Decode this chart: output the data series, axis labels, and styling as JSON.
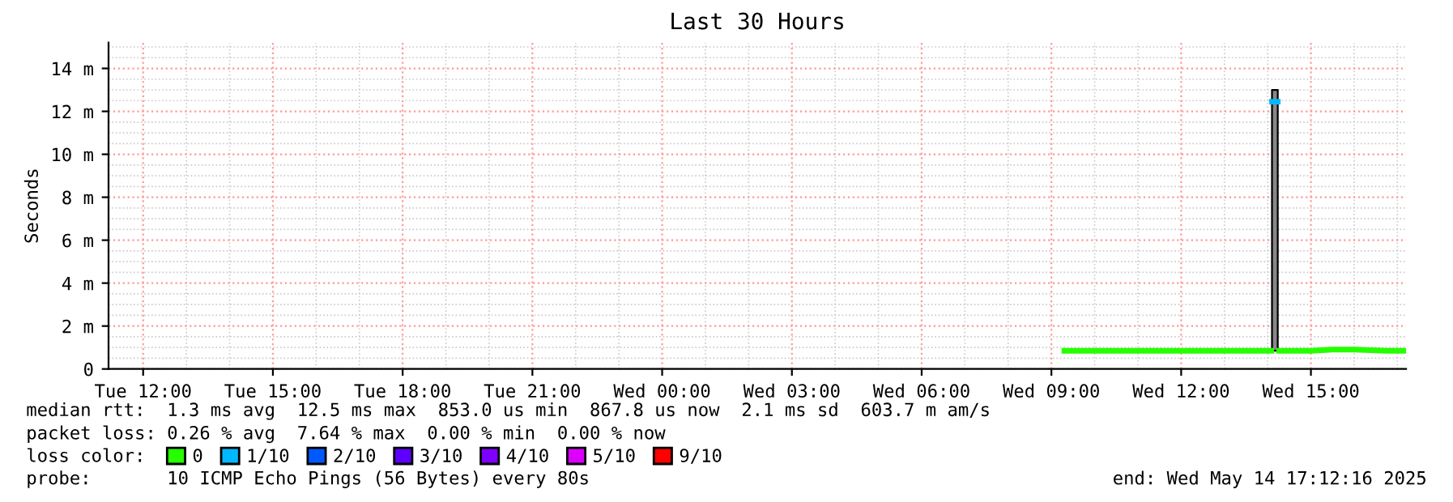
{
  "chart_data": {
    "type": "line",
    "title": "Last 30 Hours",
    "ylabel": "Seconds",
    "xlim": [
      "2025-05-13T11:12",
      "2025-05-14T17:12"
    ],
    "xticks": [
      {
        "value": "2025-05-13T12:00",
        "label": "Tue 12:00"
      },
      {
        "value": "2025-05-13T15:00",
        "label": "Tue 15:00"
      },
      {
        "value": "2025-05-13T18:00",
        "label": "Tue 18:00"
      },
      {
        "value": "2025-05-13T21:00",
        "label": "Tue 21:00"
      },
      {
        "value": "2025-05-14T00:00",
        "label": "Wed 00:00"
      },
      {
        "value": "2025-05-14T03:00",
        "label": "Wed 03:00"
      },
      {
        "value": "2025-05-14T06:00",
        "label": "Wed 06:00"
      },
      {
        "value": "2025-05-14T09:00",
        "label": "Wed 09:00"
      },
      {
        "value": "2025-05-14T12:00",
        "label": "Wed 12:00"
      },
      {
        "value": "2025-05-14T15:00",
        "label": "Wed 15:00"
      }
    ],
    "ylim": [
      0,
      15.2
    ],
    "yticks": [
      0,
      {
        "value": 2,
        "label": "2 m"
      },
      {
        "value": 4,
        "label": "4 m"
      },
      {
        "value": 6,
        "label": "6 m"
      },
      {
        "value": 8,
        "label": "8 m"
      },
      {
        "value": 10,
        "label": "10 m"
      },
      {
        "value": 12,
        "label": "12 m"
      },
      {
        "value": 14,
        "label": "14 m"
      }
    ],
    "grid": true,
    "legend": "bottom",
    "legend_title": "loss color:",
    "series": [
      {
        "name": "0",
        "color": "#26ff00",
        "x": [
          "2025-05-14T09:18",
          "2025-05-14T10:00",
          "2025-05-14T11:00",
          "2025-05-14T12:00",
          "2025-05-14T13:00",
          "2025-05-14T14:05",
          "2025-05-14T14:10",
          "2025-05-14T14:16",
          "2025-05-14T15:00",
          "2025-05-14T15:30",
          "2025-05-14T16:00",
          "2025-05-14T16:45",
          "2025-05-14T17:10"
        ],
        "values": [
          0.85,
          0.85,
          0.85,
          0.85,
          0.85,
          0.85,
          null,
          0.85,
          0.85,
          0.9,
          0.9,
          0.85,
          0.85
        ]
      },
      {
        "name": "1/10",
        "color": "#00b8ff",
        "x": [
          "2025-05-14T14:06",
          "2025-05-14T14:14"
        ],
        "values": [
          12.45,
          12.45
        ],
        "lower": [
          0.85,
          0.85
        ],
        "upper": [
          13.0,
          13.0
        ]
      },
      {
        "name": "2/10",
        "color": "#0059ff"
      },
      {
        "name": "3/10",
        "color": "#5e00ff"
      },
      {
        "name": "4/10",
        "color": "#7e00ff"
      },
      {
        "name": "5/10",
        "color": "#dd00ff"
      },
      {
        "name": "9/10",
        "color": "#ff0000"
      }
    ],
    "annotations": [
      "median rtt:  1.3 ms avg  12.5 ms max  853.0 us min  867.8 us now  2.1 ms sd  603.7 m am/s",
      "packet loss: 0.26 % avg  7.64 % max  0.00 % min  0.00 % now",
      "probe:       10 ICMP Echo Pings (56 Bytes) every 80s",
      "end: Wed May 14 17:12:16 2025"
    ]
  }
}
